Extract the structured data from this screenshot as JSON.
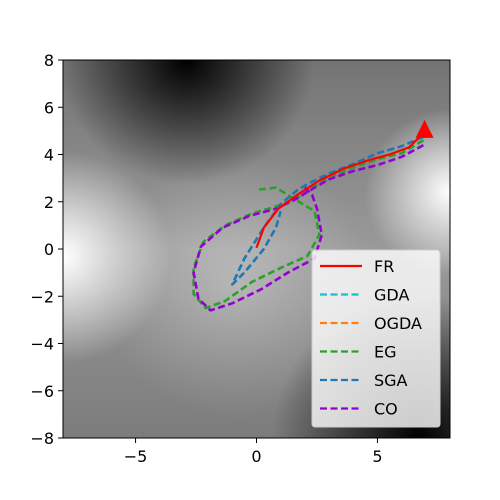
{
  "chart_data": {
    "type": "line",
    "title": "",
    "xlabel": "",
    "ylabel": "",
    "xlim": [
      -8,
      8
    ],
    "ylim": [
      -8,
      8
    ],
    "xticks": [
      -5,
      0,
      5
    ],
    "xtick_labels": [
      "−5",
      "0",
      "5"
    ],
    "yticks": [
      -8,
      -6,
      -4,
      -2,
      0,
      2,
      4,
      6,
      8
    ],
    "ytick_labels": [
      "−8",
      "−6",
      "−4",
      "−2",
      "0",
      "2",
      "4",
      "6",
      "8"
    ],
    "grid": false,
    "background": "grayscale filled contour of an objective surface",
    "legend_position": "lower-right",
    "target_marker": {
      "x": 6.95,
      "y": 5.0,
      "color": "#ff0000",
      "shape": "triangle"
    },
    "series": [
      {
        "name": "FR",
        "color": "#ff0000",
        "dash": "solid",
        "points": [
          [
            0.0,
            0.05
          ],
          [
            0.3,
            0.9
          ],
          [
            0.9,
            1.7
          ],
          [
            1.7,
            2.3
          ],
          [
            2.6,
            2.9
          ],
          [
            3.6,
            3.4
          ],
          [
            4.6,
            3.75
          ],
          [
            5.5,
            4.0
          ],
          [
            6.3,
            4.3
          ],
          [
            6.95,
            4.95
          ]
        ]
      },
      {
        "name": "GDA",
        "color": "#17becf",
        "dash": "dashed",
        "points": []
      },
      {
        "name": "OGDA",
        "color": "#ff7f0e",
        "dash": "dashed",
        "points": []
      },
      {
        "name": "EG",
        "color": "#2ca02c",
        "dash": "dashed",
        "points": [
          [
            6.9,
            4.6
          ],
          [
            6.0,
            4.05
          ],
          [
            5.0,
            3.8
          ],
          [
            4.0,
            3.45
          ],
          [
            3.0,
            3.0
          ],
          [
            2.3,
            2.6
          ],
          [
            1.6,
            2.1
          ],
          [
            0.8,
            1.8
          ],
          [
            -0.2,
            1.5
          ],
          [
            -1.3,
            1.0
          ],
          [
            -2.2,
            0.3
          ],
          [
            -2.6,
            -0.8
          ],
          [
            -2.6,
            -1.9
          ],
          [
            -2.1,
            -2.5
          ],
          [
            -1.3,
            -2.2
          ],
          [
            -0.2,
            -1.4
          ],
          [
            1.0,
            -0.8
          ],
          [
            2.1,
            -0.3
          ],
          [
            2.6,
            0.6
          ],
          [
            2.4,
            1.6
          ],
          [
            1.6,
            2.1
          ],
          [
            0.8,
            2.6
          ],
          [
            0.0,
            2.5
          ]
        ]
      },
      {
        "name": "SGA",
        "color": "#1f77b4",
        "dash": "dashed",
        "points": [
          [
            6.9,
            4.75
          ],
          [
            6.0,
            4.35
          ],
          [
            5.0,
            4.05
          ],
          [
            4.0,
            3.6
          ],
          [
            3.0,
            3.2
          ],
          [
            2.3,
            2.85
          ],
          [
            1.7,
            2.5
          ],
          [
            1.0,
            1.9
          ],
          [
            0.3,
            0.9
          ],
          [
            -0.5,
            -0.4
          ],
          [
            -1.0,
            -1.5
          ],
          [
            -0.5,
            -1.0
          ],
          [
            0.3,
            0.0
          ],
          [
            0.8,
            0.9
          ],
          [
            1.0,
            1.6
          ]
        ]
      },
      {
        "name": "CO",
        "color": "#9400d3",
        "dash": "dashed",
        "points": [
          [
            6.9,
            4.4
          ],
          [
            6.0,
            3.9
          ],
          [
            5.0,
            3.55
          ],
          [
            4.0,
            3.3
          ],
          [
            3.0,
            2.95
          ],
          [
            2.4,
            2.6
          ],
          [
            1.6,
            2.1
          ],
          [
            0.8,
            1.7
          ],
          [
            -0.3,
            1.4
          ],
          [
            -1.4,
            0.9
          ],
          [
            -2.3,
            0.1
          ],
          [
            -2.6,
            -1.0
          ],
          [
            -2.4,
            -2.1
          ],
          [
            -1.9,
            -2.6
          ],
          [
            -1.0,
            -2.3
          ],
          [
            0.2,
            -1.7
          ],
          [
            1.3,
            -1.0
          ],
          [
            2.4,
            -0.4
          ],
          [
            2.7,
            0.6
          ],
          [
            2.5,
            1.7
          ],
          [
            2.3,
            2.3
          ],
          [
            2.0,
            2.6
          ]
        ]
      }
    ]
  }
}
